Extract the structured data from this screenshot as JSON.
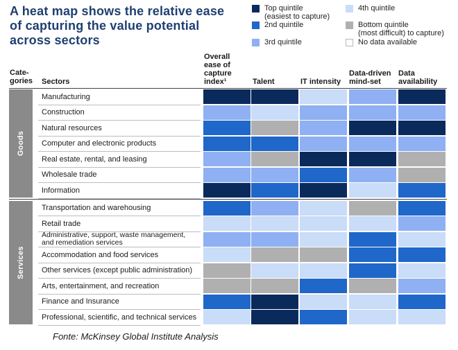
{
  "title": "A heat map shows the relative ease of capturing the value potential across sectors",
  "source": "Fonte: McKinsey Global Institute Analysis",
  "legend": [
    {
      "key": "top",
      "label": "Top quintile\n(easiest to capture)"
    },
    {
      "key": "q4",
      "label": "4th quintile"
    },
    {
      "key": "q2",
      "label": "2nd quintile"
    },
    {
      "key": "bottom",
      "label": "Bottom quintile\n(most difficult) to capture)"
    },
    {
      "key": "q3",
      "label": "3rd quintile"
    },
    {
      "key": "na",
      "label": "No data available"
    }
  ],
  "colors": {
    "top": "#0b2a5c",
    "q2": "#1f67c9",
    "q3": "#8fb0f2",
    "q4": "#c9dcf8",
    "bottom": "#b0b0b0",
    "na": "#ffffff"
  },
  "chart_data": {
    "type": "heatmap",
    "title": "A heat map shows the relative ease of capturing the value potential across sectors",
    "header_categories": "Cate-\ngories",
    "header_sectors": "Sectors",
    "columns": [
      "Overall\nease of\ncapture\nindex¹",
      "Talent",
      "IT intensity",
      "Data-driven\nmind-set",
      "Data\navailability"
    ],
    "categories": [
      {
        "name": "Goods",
        "rows": 7
      },
      {
        "name": "Services",
        "rows": 8
      }
    ],
    "rows": [
      {
        "sector": "Manufacturing",
        "values": [
          "top",
          "top",
          "q4",
          "q3",
          "top"
        ]
      },
      {
        "sector": "Construction",
        "values": [
          "q3",
          "q4",
          "q3",
          "q3",
          "q3"
        ]
      },
      {
        "sector": "Natural resources",
        "values": [
          "q2",
          "bottom",
          "q3",
          "top",
          "top"
        ]
      },
      {
        "sector": "Computer and electronic products",
        "values": [
          "q2",
          "q2",
          "q3",
          "q3",
          "q3"
        ]
      },
      {
        "sector": "Real estate, rental, and leasing",
        "values": [
          "q3",
          "bottom",
          "top",
          "top",
          "bottom"
        ]
      },
      {
        "sector": "Wholesale trade",
        "values": [
          "q3",
          "q3",
          "q2",
          "q3",
          "bottom"
        ]
      },
      {
        "sector": "Information",
        "values": [
          "top",
          "q2",
          "top",
          "q4",
          "q2"
        ]
      },
      {
        "sector": "Transportation and warehousing",
        "values": [
          "q2",
          "q3",
          "q4",
          "bottom",
          "q2"
        ]
      },
      {
        "sector": "Retail trade",
        "values": [
          "q4",
          "q4",
          "q4",
          "q4",
          "q3"
        ]
      },
      {
        "sector": "Administrative, support, waste management,\nand remediation services",
        "values": [
          "q3",
          "q3",
          "q4",
          "q2",
          "q4"
        ]
      },
      {
        "sector": "Accommodation and food services",
        "values": [
          "q4",
          "bottom",
          "bottom",
          "q2",
          "q2"
        ]
      },
      {
        "sector": "Other services (except public administration)",
        "values": [
          "bottom",
          "q4",
          "q4",
          "q2",
          "q4"
        ]
      },
      {
        "sector": "Arts, entertainment, and recreation",
        "values": [
          "bottom",
          "bottom",
          "q2",
          "bottom",
          "q3"
        ]
      },
      {
        "sector": "Finance and Insurance",
        "values": [
          "q2",
          "top",
          "q4",
          "q4",
          "q2"
        ]
      },
      {
        "sector": "Professional, scientific, and technical services",
        "values": [
          "q4",
          "top",
          "q2",
          "q4",
          "q4"
        ]
      }
    ]
  }
}
